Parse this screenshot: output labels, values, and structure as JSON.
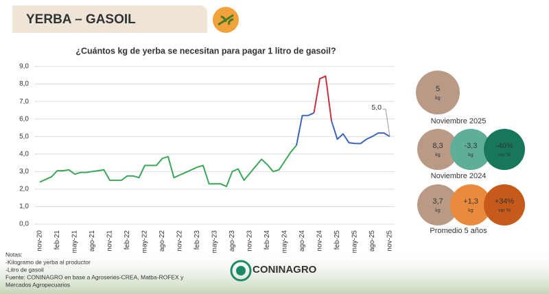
{
  "header": {
    "title": "YERBA – GASOIL"
  },
  "chart_data": {
    "type": "line",
    "title": "¿Cuántos kg de yerba se necesitan para pagar 1 litro de gasoil?",
    "categories": [
      "nov-20",
      null,
      null,
      "feb-21",
      null,
      null,
      "may-21",
      null,
      null,
      "ago-21",
      null,
      null,
      "nov-21",
      null,
      null,
      "feb-22",
      null,
      null,
      "may-22",
      null,
      null,
      "ago-22",
      null,
      null,
      "nov-22",
      null,
      null,
      "feb-23",
      null,
      null,
      "may-23",
      null,
      null,
      "ago-23",
      null,
      null,
      "nov-23",
      null,
      null,
      "feb-24",
      null,
      null,
      "may-24",
      null,
      null,
      "ago-24",
      null,
      null,
      "nov-24",
      null,
      null,
      "feb-25",
      null,
      null,
      "may-25",
      null,
      null,
      "ago-25",
      null,
      null,
      "nov-25"
    ],
    "series": [
      {
        "color": "#3aa657",
        "values": [
          2.4,
          2.55,
          2.7,
          3.05,
          3.05,
          3.1,
          2.85,
          2.95,
          2.95,
          3.0,
          3.05,
          3.1,
          2.5,
          2.5,
          2.5,
          2.75,
          2.75,
          2.65,
          3.35,
          3.35,
          3.35,
          3.75,
          3.85,
          2.65,
          2.8,
          2.95,
          3.1,
          3.25,
          3.35,
          2.3,
          2.3,
          2.3,
          2.15,
          3.0,
          3.15,
          2.5,
          2.9,
          3.3,
          3.7,
          3.4,
          3.0,
          3.1,
          3.6,
          4.1,
          4.5,
          null,
          null,
          null,
          null,
          null,
          null,
          null,
          null,
          null,
          null,
          null,
          null,
          null,
          null,
          null,
          null
        ]
      },
      {
        "color": "#3a66b8",
        "values": [
          null,
          null,
          null,
          null,
          null,
          null,
          null,
          null,
          null,
          null,
          null,
          null,
          null,
          null,
          null,
          null,
          null,
          null,
          null,
          null,
          null,
          null,
          null,
          null,
          null,
          null,
          null,
          null,
          null,
          null,
          null,
          null,
          null,
          null,
          null,
          null,
          null,
          null,
          null,
          null,
          null,
          null,
          null,
          null,
          4.5,
          6.2,
          6.2,
          6.35,
          null,
          null,
          5.9,
          4.85,
          5.15,
          4.65,
          4.6,
          4.6,
          4.85,
          5.0,
          5.2,
          5.2,
          5.0
        ]
      },
      {
        "color": "#c8303a",
        "values": [
          null,
          null,
          null,
          null,
          null,
          null,
          null,
          null,
          null,
          null,
          null,
          null,
          null,
          null,
          null,
          null,
          null,
          null,
          null,
          null,
          null,
          null,
          null,
          null,
          null,
          null,
          null,
          null,
          null,
          null,
          null,
          null,
          null,
          null,
          null,
          null,
          null,
          null,
          null,
          null,
          null,
          null,
          null,
          null,
          null,
          null,
          null,
          6.35,
          8.3,
          8.45,
          5.9,
          null,
          null,
          null,
          null,
          null,
          null,
          null,
          null,
          null,
          null
        ]
      }
    ],
    "annotation": "5,0",
    "ylim": [
      0,
      9
    ],
    "yticks": [
      {
        "value": 0,
        "label": "0,0"
      },
      {
        "value": 1,
        "label": "1,0"
      },
      {
        "value": 2,
        "label": "2,0"
      },
      {
        "value": 3,
        "label": "3,0"
      },
      {
        "value": 4,
        "label": "4,0"
      },
      {
        "value": 5,
        "label": "5,0"
      },
      {
        "value": 6,
        "label": "6,0"
      },
      {
        "value": 7,
        "label": "7,0"
      },
      {
        "value": 8,
        "label": "8,0"
      },
      {
        "value": 9,
        "label": "9,0"
      }
    ],
    "grid": true
  },
  "summary": [
    {
      "caption": "Noviembre 2025",
      "items": [
        {
          "value": "5",
          "unit": "kg",
          "color": "#b99a86"
        }
      ]
    },
    {
      "caption": "Noviembre 2024",
      "items": [
        {
          "value": "8,3",
          "unit": "kg",
          "color": "#b99a86"
        },
        {
          "value": "-3,3",
          "unit": "kg",
          "color": "#5fae9a"
        },
        {
          "value": "-40%",
          "unit": "var %",
          "color": "#17775c"
        }
      ]
    },
    {
      "caption": "Promedio 5 años",
      "items": [
        {
          "value": "3,7",
          "unit": "kg",
          "color": "#b99a86"
        },
        {
          "value": "+1,3",
          "unit": "kg",
          "color": "#ea8a3c"
        },
        {
          "value": "+34%",
          "unit": "var %",
          "color": "#c55a1a"
        }
      ]
    }
  ],
  "notes": [
    "Notas:",
    "-Kilogramo de yerba al productor",
    "-Litro de gasoil",
    "Fuente: CONINAGRO en base a Agroseries-CREA, Matba-ROFEX y",
    "Mercados Agropecuarios"
  ],
  "logo": "CONINAGRO"
}
